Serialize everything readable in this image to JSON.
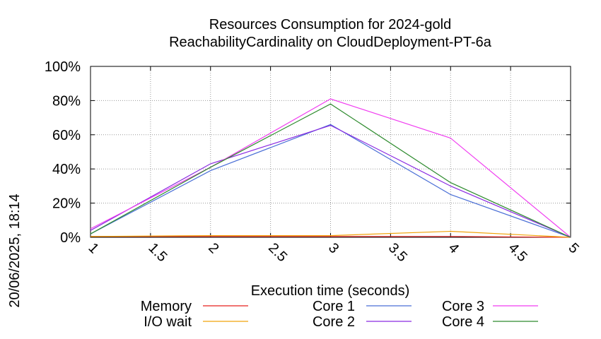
{
  "chart_data": {
    "type": "line",
    "title_line1": "Resources Consumption for 2024-gold",
    "title_line2": "ReachabilityCardinality on CloudDeployment-PT-6a",
    "xlabel": "Execution time (seconds)",
    "ylabel": "",
    "timestamp": "20/06/2025, 18:14",
    "xlim": [
      1,
      5
    ],
    "ylim": [
      0,
      100
    ],
    "x_ticks": [
      "1",
      "1.5",
      "2",
      "2.5",
      "3",
      "3.5",
      "4",
      "4.5",
      "5"
    ],
    "y_ticks": [
      "0%",
      "20%",
      "40%",
      "60%",
      "80%",
      "100%"
    ],
    "grid": true,
    "legend_position": "bottom",
    "series": [
      {
        "name": "Memory",
        "color": "#e8211f",
        "x": [
          1,
          2,
          3,
          4,
          5
        ],
        "values": [
          0.5,
          0.5,
          0.5,
          0.5,
          0
        ]
      },
      {
        "name": "I/O wait",
        "color": "#f0a30a",
        "x": [
          1,
          2,
          3,
          4,
          5
        ],
        "values": [
          0.5,
          1,
          1,
          3.5,
          0
        ]
      },
      {
        "name": "Core 1",
        "color": "#4a6fd6",
        "x": [
          1,
          2,
          3,
          4,
          5
        ],
        "values": [
          2,
          39,
          66,
          25,
          0
        ]
      },
      {
        "name": "Core 2",
        "color": "#8a2be2",
        "x": [
          1,
          2,
          3,
          4,
          5
        ],
        "values": [
          4,
          43,
          65.5,
          30,
          0
        ]
      },
      {
        "name": "Core 3",
        "color": "#f03cf0",
        "x": [
          1,
          2,
          3,
          4,
          5
        ],
        "values": [
          5,
          41,
          81,
          58,
          0
        ]
      },
      {
        "name": "Core 4",
        "color": "#2e8b2e",
        "x": [
          1,
          2,
          3,
          4,
          5
        ],
        "values": [
          2,
          41,
          78,
          32,
          0
        ]
      }
    ]
  }
}
